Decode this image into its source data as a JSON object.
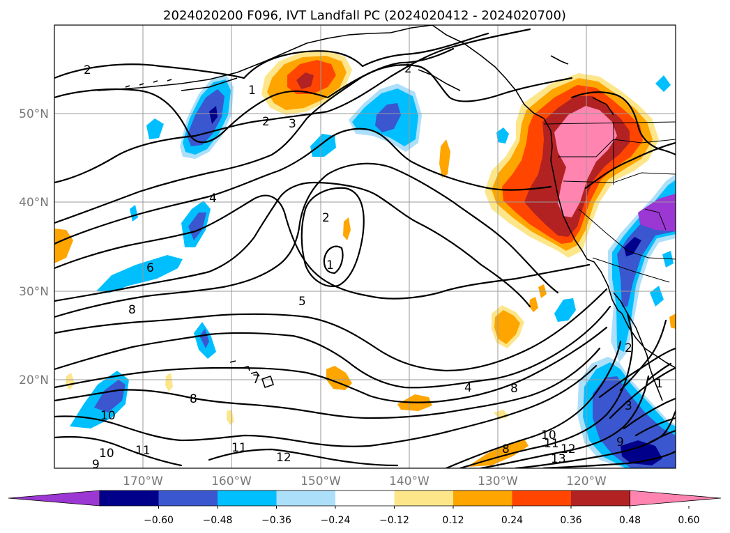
{
  "title": "2024020200 F096, IVT Landfall PC (2024020412 - 2024020700)",
  "map": {
    "lat_labels": [
      "50°N",
      "40°N",
      "30°N",
      "20°N"
    ],
    "lon_labels": [
      "170°W",
      "160°W",
      "150°W",
      "140°W",
      "130°W",
      "120°W"
    ]
  },
  "colorbar": {
    "tick_labels": [
      "−0.60",
      "−0.48",
      "−0.36",
      "−0.24",
      "−0.12",
      "0.12",
      "0.24",
      "0.36",
      "0.48",
      "0.60"
    ],
    "colors": [
      "#9b37d2",
      "#00008b",
      "#3a57d0",
      "#00bfff",
      "#acdffa",
      "#ffffff",
      "#fde68a",
      "#ffa500",
      "#ff4500",
      "#b22222",
      "#ff85b0"
    ],
    "extend": "both"
  },
  "contour_labels": [
    {
      "text": "2"
    },
    {
      "text": "1"
    },
    {
      "text": "2"
    },
    {
      "text": "3"
    },
    {
      "text": "2"
    },
    {
      "text": "4"
    },
    {
      "text": "2"
    },
    {
      "text": "1"
    },
    {
      "text": "6"
    },
    {
      "text": "5"
    },
    {
      "text": "8"
    },
    {
      "text": "7"
    },
    {
      "text": "8"
    },
    {
      "text": "10"
    },
    {
      "text": "11"
    },
    {
      "text": "10"
    },
    {
      "text": "9"
    },
    {
      "text": "11"
    },
    {
      "text": "12"
    },
    {
      "text": "4"
    },
    {
      "text": "8"
    },
    {
      "text": "10"
    },
    {
      "text": "11"
    },
    {
      "text": "12"
    },
    {
      "text": "13"
    },
    {
      "text": "9"
    },
    {
      "text": "8"
    },
    {
      "text": "3"
    },
    {
      "text": "2"
    },
    {
      "text": "1"
    }
  ]
}
